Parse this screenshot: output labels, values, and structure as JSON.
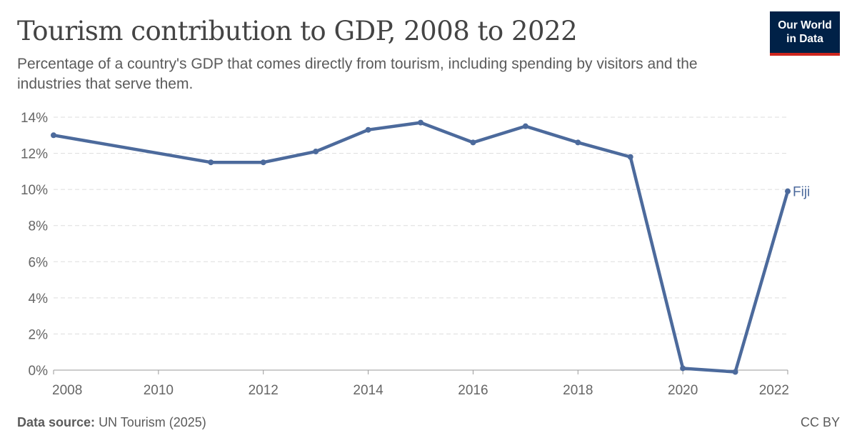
{
  "header": {
    "title": "Tourism contribution to GDP, 2008 to 2022",
    "subtitle": "Percentage of a country's GDP that comes directly from tourism, including spending by visitors and the industries that serve them."
  },
  "logo": {
    "line1": "Our World",
    "line2": "in Data"
  },
  "footer": {
    "source_label": "Data source:",
    "source_value": "UN Tourism (2025)",
    "license": "CC BY"
  },
  "colors": {
    "series": "#4c6a9c",
    "grid": "#dddddd",
    "axis": "#999999",
    "text": "#5b5b5b",
    "logo_bg": "#002147",
    "logo_accent": "#ce261e"
  },
  "chart_data": {
    "type": "line",
    "title": "Tourism contribution to GDP, 2008 to 2022",
    "ylim": [
      0,
      14
    ],
    "yticks": [
      0,
      2,
      4,
      6,
      8,
      10,
      12,
      14
    ],
    "ytick_labels": [
      "0%",
      "2%",
      "4%",
      "6%",
      "8%",
      "10%",
      "12%",
      "14%"
    ],
    "xlim": [
      2008,
      2022
    ],
    "xticks": [
      2008,
      2010,
      2012,
      2014,
      2016,
      2018,
      2020,
      2022
    ],
    "xtick_labels": [
      "2008",
      "2010",
      "2012",
      "2014",
      "2016",
      "2018",
      "2020",
      "2022"
    ],
    "grid": true,
    "series": [
      {
        "name": "Fiji",
        "x": [
          2008,
          2011,
          2012,
          2013,
          2014,
          2015,
          2016,
          2017,
          2018,
          2019,
          2020,
          2021,
          2022
        ],
        "y": [
          13.0,
          11.5,
          11.5,
          12.1,
          13.3,
          13.7,
          12.6,
          13.5,
          12.6,
          11.8,
          0.1,
          -0.1,
          9.9
        ]
      }
    ]
  }
}
